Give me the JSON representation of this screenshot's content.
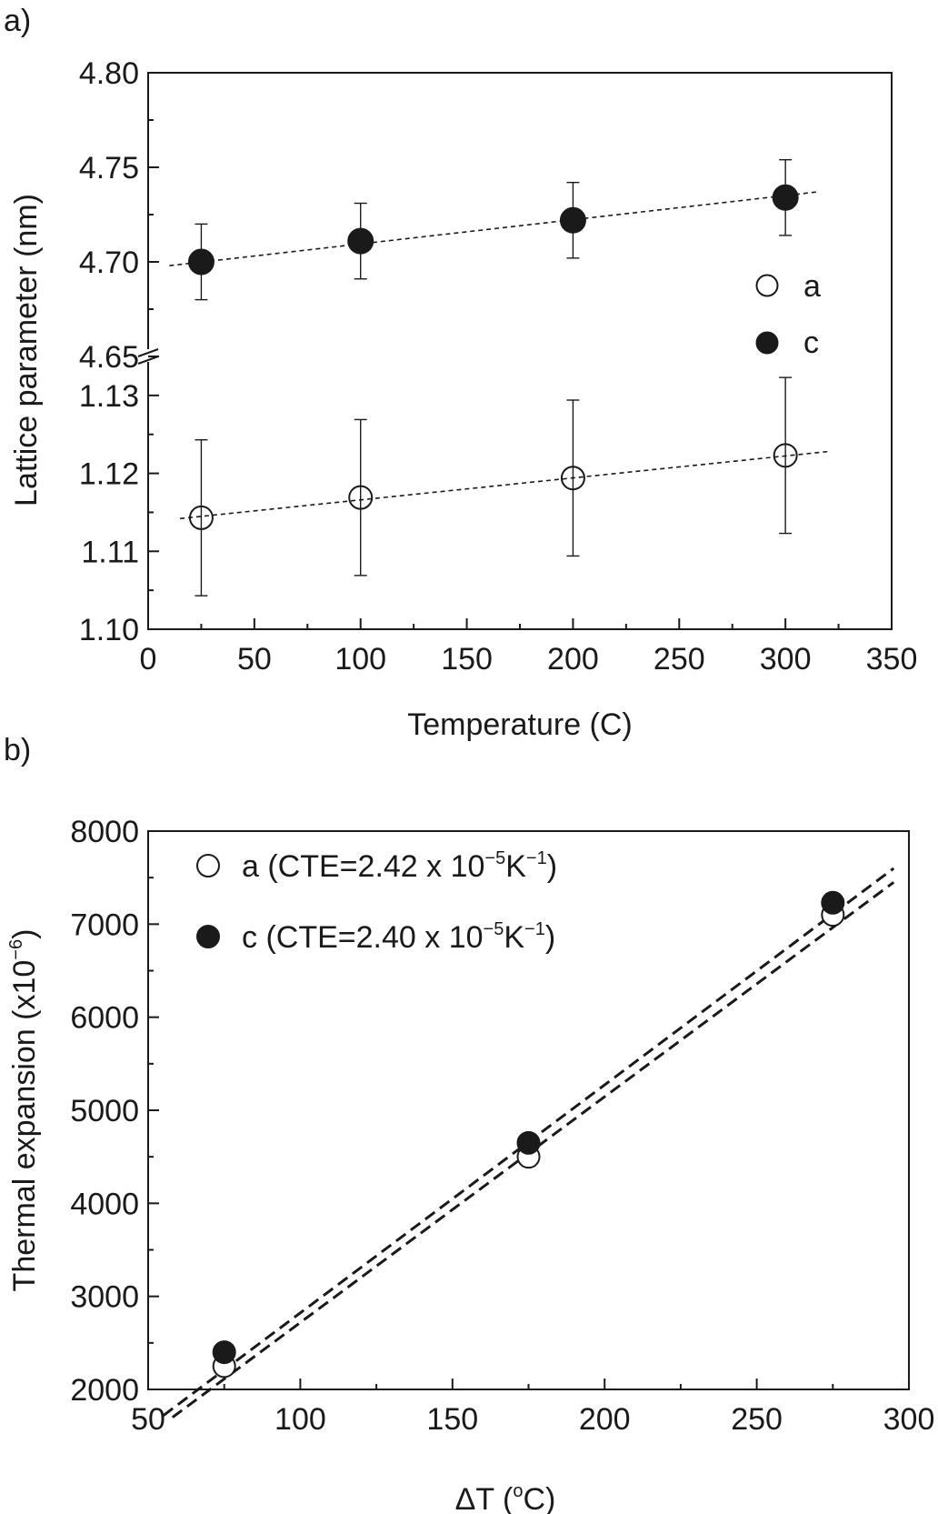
{
  "chart_data": [
    {
      "panel_label": "a)",
      "type": "scatter",
      "xlabel": "Temperature (C)",
      "ylabel": "Lattice parameter (nm)",
      "xlim": [
        0,
        350
      ],
      "x_ticks": [
        "0",
        "50",
        "100",
        "150",
        "200",
        "250",
        "300",
        "350"
      ],
      "axis_break": true,
      "upper_ylim": [
        4.65,
        4.8
      ],
      "upper_y_ticks": [
        "4.65",
        "4.70",
        "4.75",
        "4.80"
      ],
      "lower_ylim": [
        1.1,
        1.135
      ],
      "lower_y_ticks": [
        "1.10",
        "1.11",
        "1.12",
        "1.13"
      ],
      "legend_position": "right",
      "series": [
        {
          "name": "a",
          "marker": "open-circle",
          "segment": "lower",
          "x": [
            25,
            100,
            200,
            300
          ],
          "y": [
            1.1143,
            1.1169,
            1.1194,
            1.1223
          ],
          "error": [
            0.01,
            0.01,
            0.01,
            0.01
          ],
          "fit": {
            "x": [
              15,
              320
            ],
            "y": [
              1.1142,
              1.1228
            ]
          }
        },
        {
          "name": "c",
          "marker": "filled-circle",
          "segment": "upper",
          "x": [
            25,
            100,
            200,
            300
          ],
          "y": [
            4.7,
            4.711,
            4.722,
            4.734
          ],
          "error": [
            0.02,
            0.02,
            0.02,
            0.02
          ],
          "fit": {
            "x": [
              10,
              315
            ],
            "y": [
              4.698,
              4.737
            ]
          }
        }
      ]
    },
    {
      "panel_label": "b)",
      "type": "scatter",
      "xlabel": "ΔT (",
      "xlabel_sup": "o",
      "xlabel_end": "C)",
      "ylabel": "Thermal expansion (x10",
      "ylabel_sup": "−6",
      "ylabel_end": ")",
      "xlim": [
        50,
        300
      ],
      "x_ticks": [
        "50",
        "100",
        "150",
        "200",
        "250",
        "300"
      ],
      "ylim": [
        2000,
        8000
      ],
      "y_ticks": [
        "2000",
        "3000",
        "4000",
        "5000",
        "6000",
        "7000",
        "8000"
      ],
      "legend_position": "top-left",
      "series": [
        {
          "name": "a",
          "legend_prefix": "a (CTE=2.42 x 10",
          "legend_sup1": "−5",
          "legend_mid": "K",
          "legend_sup2": "−1",
          "legend_end": ")",
          "marker": "open-circle",
          "x": [
            75,
            175,
            275
          ],
          "y": [
            2250,
            4500,
            7100
          ],
          "fit": {
            "x": [
              58,
              295
            ],
            "y": [
              1700,
              7450
            ]
          }
        },
        {
          "name": "c",
          "legend_prefix": "c (CTE=2.40 x 10",
          "legend_sup1": "−5",
          "legend_mid": "K",
          "legend_sup2": "−1",
          "legend_end": ")",
          "marker": "filled-circle",
          "x": [
            75,
            175,
            275
          ],
          "y": [
            2400,
            4650,
            7230
          ],
          "fit": {
            "x": [
              55,
              295
            ],
            "y": [
              1720,
              7600
            ]
          }
        }
      ]
    }
  ]
}
